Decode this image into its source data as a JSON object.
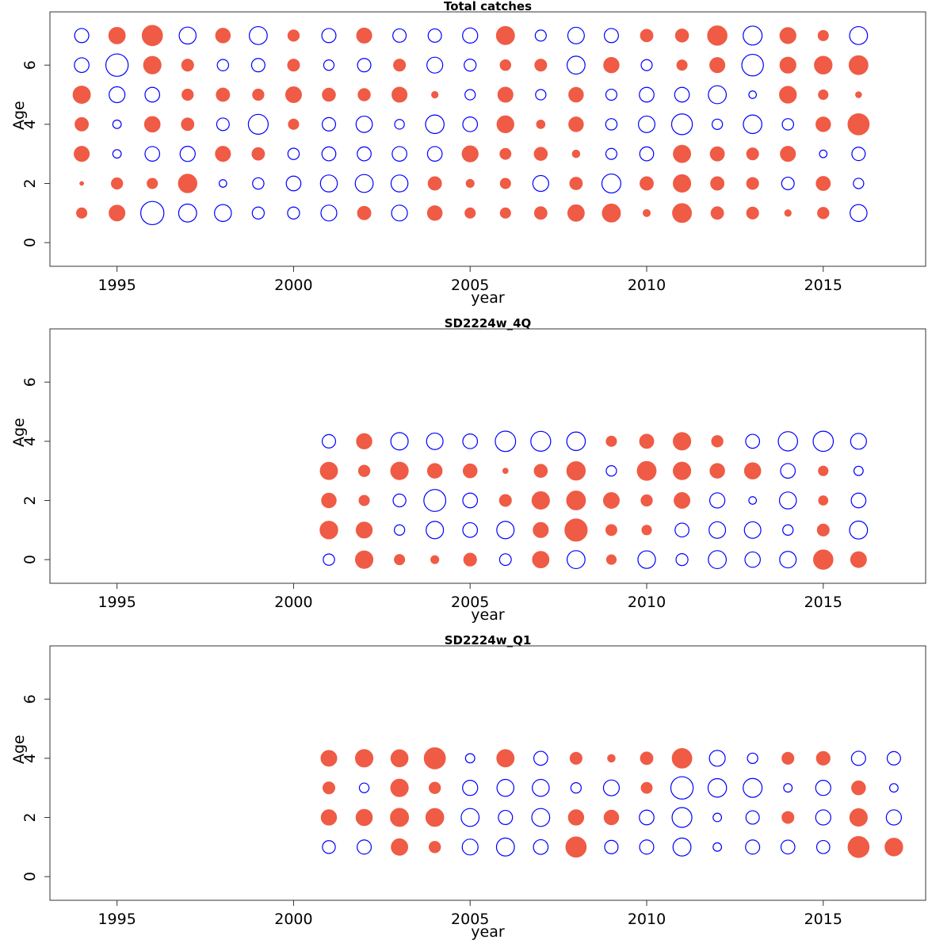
{
  "colors": {
    "positive": "#ef5b45",
    "negative": "#0000ff"
  },
  "chart_data": [
    {
      "type": "scatter",
      "title": "Total catches",
      "xlabel": "year",
      "ylabel": "Age",
      "xlim": [
        1993.1,
        2017.9
      ],
      "ylim": [
        -0.8,
        7.8
      ],
      "xticks": [
        1995,
        2000,
        2005,
        2010,
        2015
      ],
      "yticks": [
        0,
        2,
        4,
        6
      ],
      "size_max": 9,
      "years": [
        1994,
        1995,
        1996,
        1997,
        1998,
        1999,
        2000,
        2001,
        2002,
        2003,
        2004,
        2005,
        2006,
        2007,
        2008,
        2009,
        2010,
        2011,
        2012,
        2013,
        2014,
        2015,
        2016
      ],
      "ages": [
        1,
        2,
        3,
        4,
        5,
        6,
        7
      ],
      "residuals": [
        [
          1.5,
          3.5,
          -7.5,
          -4.5,
          -4,
          -2,
          -2,
          -3.5,
          2.5,
          -3.5,
          3,
          1.5,
          1.5,
          2.2,
          3.8,
          4.6,
          0.7,
          5,
          2.2,
          2,
          0.6,
          1.8,
          -4
        ],
        [
          0.2,
          1.8,
          1.5,
          4.8,
          -0.8,
          -1.8,
          -3,
          -4,
          -4.5,
          -4,
          2.5,
          0.9,
          1.5,
          -3.5,
          2.2,
          -5,
          2.5,
          4.3,
          2.5,
          2,
          -2.2,
          2.8,
          -1.5
        ],
        [
          3.2,
          -1,
          -3,
          -3.2,
          3.2,
          2.2,
          -1.8,
          -2.7,
          -2.7,
          -3,
          -3,
          3.6,
          1.7,
          2.4,
          0.8,
          -1.7,
          -2.7,
          4.2,
          2.8,
          2,
          3.2,
          -0.8,
          -2.5
        ],
        [
          2.5,
          -1,
          3.4,
          2.2,
          -2.2,
          -5.5,
          1.5,
          -2.5,
          -3.7,
          -1.3,
          -4.8,
          -3,
          4,
          1,
          3,
          -1.8,
          -3.8,
          -6,
          -1.5,
          -4.8,
          -1.8,
          3,
          6.3
        ],
        [
          4.2,
          -3.5,
          -3,
          1.8,
          2.5,
          1.8,
          3.5,
          2.4,
          2.1,
          3.2,
          0.6,
          -1.5,
          3.2,
          -1.5,
          3,
          -1.7,
          -3,
          -3,
          -4.5,
          -0.8,
          4,
          1.3,
          0.5
        ],
        [
          -3,
          -7,
          4.3,
          2,
          -1.8,
          -2.5,
          2,
          -1.5,
          -2.5,
          2,
          -3.5,
          -2,
          1.6,
          2,
          -4.5,
          3.3,
          -1.7,
          1.5,
          3.2,
          -6.5,
          3.6,
          4.4,
          5
        ],
        [
          -2.8,
          3.8,
          5.8,
          -4,
          3,
          -4.5,
          1.8,
          -2.8,
          3.2,
          -2.5,
          -2.5,
          -3.2,
          4.6,
          -1.7,
          -3.8,
          -2.8,
          2.2,
          2.4,
          5.3,
          -5,
          3.6,
          1.5,
          -4.5
        ]
      ]
    },
    {
      "type": "scatter",
      "title": "SD2224w_4Q",
      "xlabel": "year",
      "ylabel": "Age",
      "xlim": [
        1993.1,
        2017.9
      ],
      "ylim": [
        -0.8,
        7.8
      ],
      "xticks": [
        1995,
        2000,
        2005,
        2010,
        2015
      ],
      "yticks": [
        0,
        2,
        4,
        6
      ],
      "size_max": 9,
      "years": [
        2001,
        2002,
        2003,
        2004,
        2005,
        2006,
        2007,
        2008,
        2009,
        2010,
        2011,
        2012,
        2013,
        2014,
        2015,
        2016
      ],
      "ages": [
        0,
        1,
        2,
        3,
        4
      ],
      "residuals": [
        [
          -1.8,
          4.3,
          1.5,
          0.9,
          2.3,
          -1.9,
          3.8,
          -4.5,
          1.3,
          -4.3,
          -2,
          -4.5,
          -3.3,
          -3.8,
          5.3,
          3.5
        ],
        [
          4.4,
          3.6,
          -1.5,
          -4.2,
          -3,
          -4.2,
          3.2,
          7,
          1.7,
          1.3,
          -2.7,
          -3.8,
          -3.8,
          -1.5,
          2,
          -4.5
        ],
        [
          3,
          1.5,
          -2.3,
          -6.7,
          -3,
          2,
          4.3,
          5,
          3.5,
          1.8,
          3.5,
          -3.2,
          -0.8,
          -4,
          1.2,
          -3
        ],
        [
          4.2,
          1.8,
          4.3,
          3,
          2.7,
          0.4,
          2.4,
          4.8,
          -1.5,
          5,
          4.3,
          3,
          3.7,
          -3,
          1.3,
          -1.2
        ],
        [
          -2.5,
          3.3,
          -4.2,
          -3.8,
          -3,
          -5.8,
          -5.5,
          -4.8,
          1.5,
          2.8,
          4.3,
          1.8,
          -2.7,
          -5.2,
          -5.7,
          -3.5
        ]
      ]
    },
    {
      "type": "scatter",
      "title": "SD2224w_Q1",
      "xlabel": "year",
      "ylabel": "Age",
      "xlim": [
        1993.1,
        2017.9
      ],
      "ylim": [
        -0.8,
        7.8
      ],
      "xticks": [
        1995,
        2000,
        2005,
        2010,
        2015
      ],
      "yticks": [
        0,
        2,
        4,
        6
      ],
      "size_max": 9,
      "years": [
        2001,
        2002,
        2003,
        2004,
        2005,
        2006,
        2007,
        2008,
        2009,
        2010,
        2011,
        2012,
        2013,
        2014,
        2015,
        2016,
        2017
      ],
      "ages": [
        1,
        2,
        3,
        4
      ],
      "residuals": [
        [
          -2.3,
          -2.8,
          3.8,
          1.8,
          -3.5,
          -4.5,
          -3,
          5.8,
          -2.5,
          -2.8,
          -4.5,
          -1,
          -2.8,
          -2.7,
          -2.4,
          6.2,
          4.4
        ],
        [
          3.3,
          3.7,
          4.6,
          4.5,
          -4.5,
          -2.8,
          -4.5,
          3.3,
          3,
          -3,
          -5.5,
          -1,
          -2.5,
          2,
          -3.2,
          4.3,
          -3.2
        ],
        [
          2,
          -1.3,
          4.3,
          1.8,
          -3.2,
          -4,
          -4,
          -1.5,
          -3.5,
          1.7,
          -7,
          -4.8,
          -5,
          -1,
          -3.2,
          2.7,
          -1
        ],
        [
          3.5,
          4.3,
          4.1,
          6.3,
          -1.2,
          4.2,
          -2.7,
          2,
          0.8,
          2.2,
          5.4,
          -3.5,
          -1.5,
          2,
          2.6,
          -2.8,
          -2.5
        ]
      ]
    }
  ]
}
